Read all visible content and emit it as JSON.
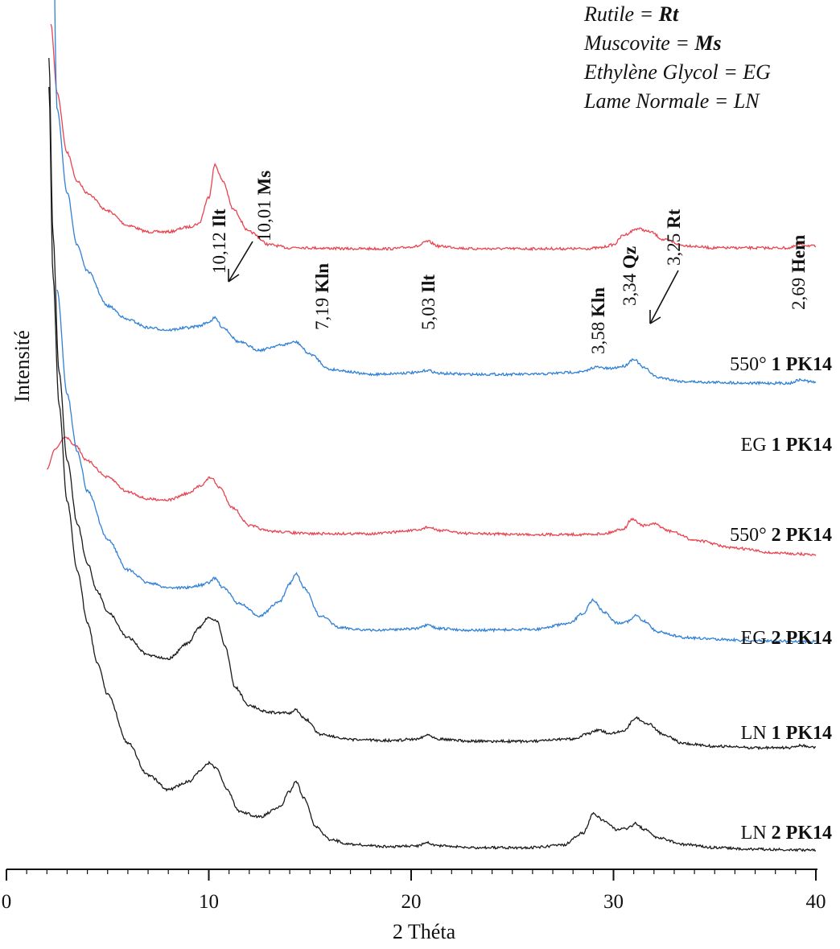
{
  "chart_data": {
    "type": "line",
    "xlabel": "2 Théta",
    "ylabel": "Intensité",
    "xlim": [
      0,
      40
    ],
    "x_ticks": [
      "0",
      "10",
      "20",
      "30",
      "40"
    ],
    "grid": false,
    "legend_lines": [
      {
        "text": "Rutile = ",
        "bold": "Rt"
      },
      {
        "text": "Muscovite = ",
        "bold": "Ms"
      },
      {
        "text": "Ethylène Glycol =  EG",
        "bold": ""
      },
      {
        "text": "Lame Normale = LN",
        "bold": ""
      }
    ],
    "peak_labels": [
      {
        "value": "10,12",
        "mineral": "Ilt",
        "two_theta": 10.3
      },
      {
        "value": "10,01",
        "mineral": "Ms",
        "two_theta": 11.0
      },
      {
        "value": "7,19",
        "mineral": "Kln",
        "two_theta": 14.3
      },
      {
        "value": "5,03",
        "mineral": "Ilt",
        "two_theta": 20.8
      },
      {
        "value": "3,58",
        "mineral": "Kln",
        "two_theta": 29.0
      },
      {
        "value": "3,34",
        "mineral": "Qz",
        "two_theta": 29.9
      },
      {
        "value": "3,25",
        "mineral": "Rt",
        "two_theta": 31.4
      },
      {
        "value": "2,69",
        "mineral": "Hem",
        "two_theta": 38.8
      }
    ],
    "series": [
      {
        "name_prefix": "550°",
        "name_bold": "1 PK14",
        "color": "#e8434f",
        "x": [
          2.2,
          2.5,
          3,
          3.5,
          4,
          5,
          6,
          7,
          8,
          9,
          9.5,
          10,
          10.3,
          10.7,
          11.2,
          12,
          13,
          14,
          14.3,
          15,
          17,
          19,
          20.3,
          20.8,
          21.4,
          23,
          26,
          28.5,
          29.3,
          30,
          30.5,
          31.2,
          31.8,
          32.5,
          33.5,
          35,
          37,
          38.7,
          39.2,
          40
        ],
        "y": [
          420,
          335,
          260,
          225,
          210,
          188,
          170,
          162,
          162,
          168,
          172,
          205,
          245,
          225,
          190,
          162,
          146,
          142,
          143,
          142,
          141,
          141,
          144,
          150,
          144,
          141,
          141,
          141,
          142,
          146,
          158,
          166,
          162,
          152,
          145,
          142,
          142,
          142,
          146,
          144
        ]
      },
      {
        "name_prefix": "EG",
        "name_bold": "1 PK14",
        "color": "#2f80d6",
        "x": [
          2.2,
          2.5,
          3,
          3.5,
          4,
          5,
          6,
          7,
          8,
          9,
          9.5,
          10,
          10.3,
          10.7,
          11.5,
          12.5,
          13.5,
          14.3,
          15,
          16,
          18,
          20.3,
          20.8,
          21.4,
          23,
          26,
          28.5,
          29.1,
          29.8,
          30.5,
          31,
          31.5,
          32.2,
          33.5,
          35,
          37,
          38.7,
          39.2,
          40
        ],
        "y": [
          860,
          440,
          335,
          270,
          238,
          195,
          178,
          168,
          165,
          168,
          170,
          175,
          180,
          168,
          150,
          140,
          146,
          150,
          135,
          116,
          110,
          112,
          115,
          111,
          110,
          110,
          113,
          119,
          117,
          120,
          129,
          118,
          106,
          101,
          100,
          99,
          99,
          103,
          100
        ]
      },
      {
        "name_prefix": "550°",
        "name_bold": "2 PK14",
        "color": "#e8434f",
        "x": [
          2.0,
          2.4,
          2.9,
          3.4,
          4,
          5,
          6,
          7,
          8,
          9,
          9.6,
          10.1,
          10.5,
          11.2,
          12,
          13,
          15,
          18,
          20.3,
          20.8,
          21.4,
          23,
          26,
          28.5,
          29.5,
          30.5,
          30.9,
          31.5,
          32,
          32.8,
          34,
          36,
          38,
          40
        ],
        "y": [
          110,
          135,
          150,
          140,
          120,
          100,
          82,
          73,
          72,
          80,
          90,
          100,
          88,
          62,
          40,
          33,
          30,
          30,
          34,
          38,
          34,
          30,
          29,
          29,
          30,
          36,
          48,
          40,
          42,
          33,
          22,
          12,
          6,
          4
        ]
      },
      {
        "name_prefix": "EG",
        "name_bold": "2 PK14",
        "color": "#2f80d6",
        "x": [
          2.5,
          3,
          3.5,
          4,
          5,
          6,
          7,
          8,
          9,
          9.6,
          10,
          10.3,
          10.7,
          11.5,
          12.5,
          13.5,
          14,
          14.3,
          14.7,
          15.5,
          16.5,
          18,
          20.3,
          20.8,
          21.4,
          23,
          26,
          27.8,
          28.5,
          29.0,
          29.5,
          30.2,
          30.7,
          31.1,
          31.5,
          32.2,
          33.5,
          35,
          37,
          40
        ],
        "y": [
          460,
          330,
          260,
          210,
          150,
          112,
          96,
          90,
          90,
          93,
          96,
          102,
          90,
          70,
          55,
          72,
          95,
          108,
          90,
          55,
          40,
          37,
          39,
          43,
          39,
          37,
          38,
          45,
          58,
          75,
          60,
          46,
          48,
          55,
          48,
          35,
          28,
          26,
          24,
          23
        ]
      },
      {
        "name_prefix": "LN",
        "name_bold": "1 PK14",
        "color": "#1a1a1a",
        "x": [
          2.1,
          2.3,
          2.6,
          3,
          3.5,
          4,
          4.5,
          5,
          6,
          7,
          8,
          9,
          9.5,
          10,
          10.4,
          10.8,
          11.3,
          12,
          13,
          14,
          14.3,
          14.8,
          15.5,
          17,
          19,
          20.3,
          20.8,
          21.4,
          23,
          26,
          28,
          28.7,
          29.2,
          29.8,
          30.5,
          31.1,
          31.7,
          32.5,
          33.5,
          35,
          37,
          38.7,
          39.2,
          40
        ],
        "y": [
          870,
          650,
          480,
          370,
          292,
          242,
          207,
          182,
          150,
          128,
          124,
          143,
          162,
          175,
          170,
          140,
          88,
          65,
          57,
          56,
          60,
          48,
          30,
          23,
          22,
          24,
          29,
          24,
          21,
          21,
          24,
          30,
          35,
          31,
          34,
          50,
          43,
          29,
          18,
          15,
          13,
          13,
          16,
          13
        ]
      },
      {
        "name_prefix": "LN",
        "name_bold": "2 PK14",
        "color": "#1a1a1a",
        "x": [
          2.1,
          2.3,
          2.6,
          3,
          3.5,
          4,
          4.5,
          5,
          6,
          7,
          8,
          9,
          9.6,
          10,
          10.4,
          10.9,
          11.5,
          12.5,
          13.5,
          14,
          14.3,
          14.7,
          15.3,
          16,
          17,
          19,
          20.3,
          20.8,
          21.4,
          23,
          26,
          27.5,
          28.5,
          29.0,
          29.5,
          30.2,
          30.7,
          31.1,
          31.5,
          32.2,
          33.5,
          35,
          37,
          40
        ],
        "y": [
          955,
          720,
          560,
          440,
          355,
          290,
          240,
          200,
          140,
          100,
          82,
          92,
          106,
          115,
          108,
          82,
          55,
          48,
          60,
          80,
          92,
          72,
          35,
          20,
          14,
          11,
          12,
          16,
          12,
          10,
          10,
          13,
          28,
          52,
          44,
          32,
          34,
          40,
          33,
          22,
          14,
          10,
          8,
          7
        ]
      }
    ]
  }
}
